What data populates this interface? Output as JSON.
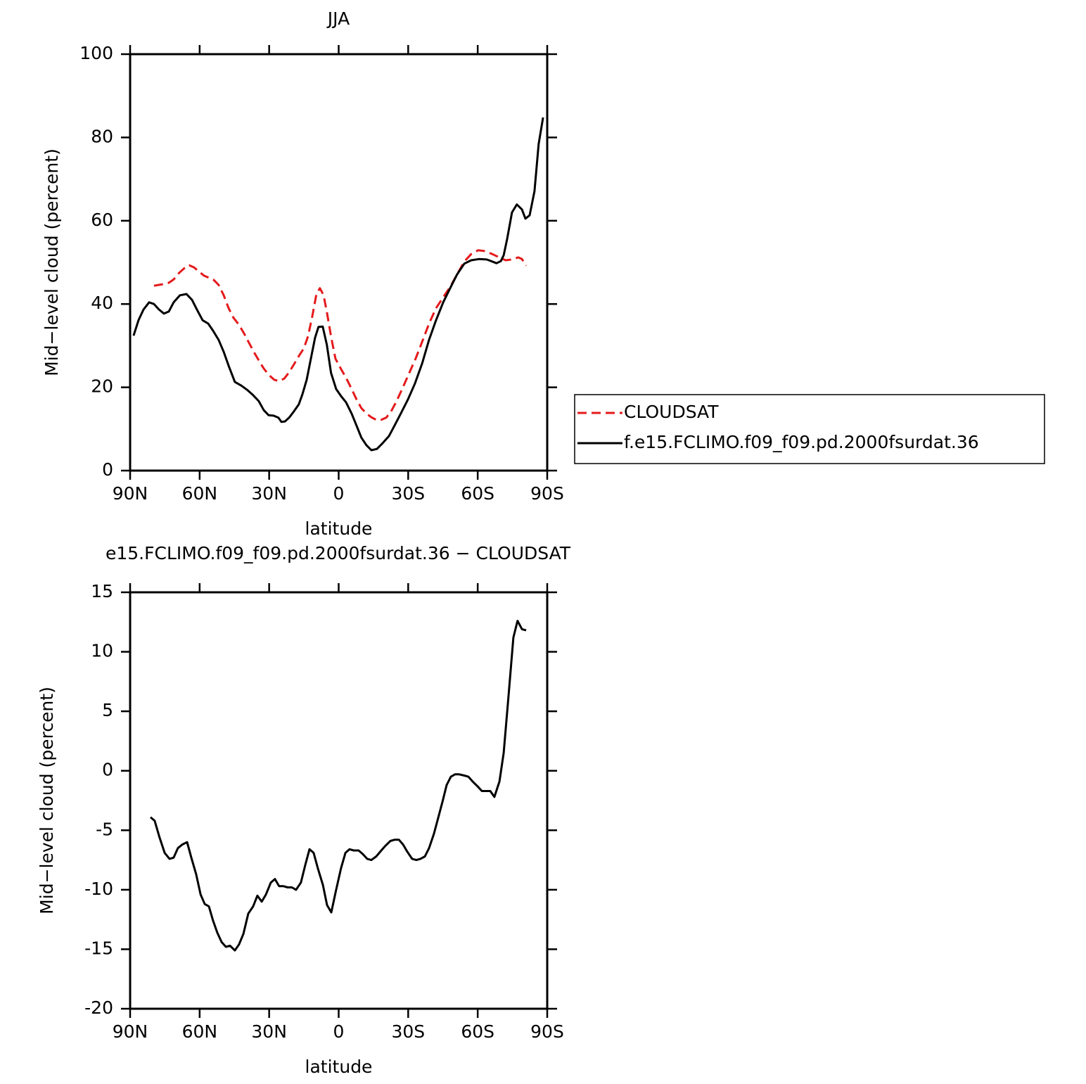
{
  "chart_data": [
    {
      "type": "line",
      "title": "JJA",
      "x_label": "latitude",
      "y_label": "Mid−level cloud (percent)",
      "xlim": [
        90,
        -90
      ],
      "xticks": [
        {
          "value": 90,
          "label": "90N"
        },
        {
          "value": 60,
          "label": "60N"
        },
        {
          "value": 30,
          "label": "30N"
        },
        0,
        {
          "value": -30,
          "label": "30S"
        },
        {
          "value": -60,
          "label": "60S"
        },
        {
          "value": -90,
          "label": "90S"
        }
      ],
      "ylim": [
        0,
        100
      ],
      "yticks": [
        0,
        20,
        40,
        60,
        80,
        100
      ],
      "legend": "outside-right",
      "series": [
        {
          "name": "CLOUDSAT",
          "color": "#e41a1c",
          "dashed": true,
          "x": [
            79.7,
            77.6,
            75.4,
            73.3,
            71.2,
            68.8,
            66.6,
            64.5,
            62.4,
            60.3,
            58.1,
            56.0,
            53.9,
            51.8,
            49.6,
            47.5,
            45.4,
            43.0,
            40.8,
            38.7,
            36.6,
            34.5,
            32.3,
            30.2,
            27.8,
            25.7,
            23.5,
            21.4,
            19.3,
            17.2,
            15.0,
            13.2,
            11.4,
            9.6,
            8.1,
            6.5,
            5.0,
            3.2,
            1.4,
            -1.1,
            -3.2,
            -5.6,
            -7.7,
            -9.8,
            -12.0,
            -14.1,
            -16.2,
            -18.4,
            -20.5,
            -22.6,
            -25.0,
            -27.8,
            -30.5,
            -33.2,
            -36.0,
            -39.0,
            -42.0,
            -45.1,
            -48.1,
            -51.1,
            -54.2,
            -57.2,
            -60.2,
            -63.3,
            -66.3,
            -69.3,
            -72.1,
            -74.8,
            -77.5,
            -79.1,
            -80.9
          ],
          "values": [
            44.4,
            44.6,
            44.8,
            45.1,
            45.9,
            47.5,
            48.6,
            49.3,
            48.8,
            47.8,
            46.8,
            46.3,
            45.8,
            44.6,
            42.1,
            39.0,
            36.7,
            35.0,
            32.9,
            30.7,
            28.5,
            26.5,
            24.5,
            23.0,
            21.8,
            21.5,
            22.1,
            23.6,
            25.5,
            27.5,
            29.4,
            32.3,
            37.0,
            42.4,
            43.8,
            42.1,
            37.8,
            31.9,
            26.9,
            24.3,
            22.3,
            19.6,
            17.1,
            15.0,
            13.7,
            12.8,
            12.2,
            12.2,
            12.7,
            14.2,
            16.7,
            20.1,
            23.5,
            26.9,
            30.9,
            35.3,
            39.0,
            41.6,
            44.1,
            47.1,
            50.2,
            52.0,
            52.9,
            52.7,
            52.0,
            51.2,
            50.5,
            50.7,
            51.2,
            50.8,
            49.2
          ]
        },
        {
          "name": "f.e15.FCLIMO.f09_f09.pd.2000fsurdat.36",
          "color": "#000000",
          "dashed": false,
          "x": [
            88.5,
            86.4,
            84.2,
            81.8,
            79.7,
            77.6,
            75.4,
            73.3,
            71.2,
            68.5,
            65.7,
            63.3,
            61.2,
            58.7,
            56.3,
            54.2,
            51.8,
            49.6,
            47.5,
            44.8,
            42.0,
            39.3,
            36.9,
            34.5,
            32.3,
            30.2,
            28.1,
            26.0,
            24.7,
            23.2,
            21.4,
            19.6,
            17.2,
            15.6,
            13.8,
            12.0,
            10.2,
            8.7,
            6.9,
            5.1,
            3.3,
            1.1,
            -1.0,
            -3.2,
            -5.6,
            -7.7,
            -9.8,
            -12.0,
            -14.1,
            -16.5,
            -19.0,
            -21.7,
            -24.1,
            -26.8,
            -29.9,
            -32.9,
            -36.0,
            -39.0,
            -42.0,
            -45.1,
            -48.1,
            -51.1,
            -54.2,
            -57.2,
            -60.5,
            -63.9,
            -66.3,
            -68.1,
            -70.0,
            -71.2,
            -72.7,
            -74.8,
            -76.9,
            -79.1,
            -80.6,
            -82.4,
            -84.5,
            -86.3,
            -88.2
          ],
          "values": [
            32.4,
            36.1,
            38.7,
            40.4,
            40.0,
            38.7,
            37.7,
            38.2,
            40.4,
            42.1,
            42.4,
            41.0,
            38.7,
            36.1,
            35.3,
            33.6,
            31.4,
            28.5,
            25.2,
            21.3,
            20.4,
            19.3,
            18.1,
            16.7,
            14.5,
            13.3,
            13.2,
            12.7,
            11.7,
            11.8,
            12.7,
            14.0,
            15.9,
            18.4,
            21.8,
            26.9,
            31.9,
            34.5,
            34.6,
            30.2,
            23.5,
            19.6,
            17.9,
            16.4,
            13.7,
            10.8,
            7.9,
            6.1,
            4.9,
            5.2,
            6.6,
            8.3,
            10.8,
            13.7,
            17.1,
            20.9,
            25.7,
            31.4,
            36.1,
            40.4,
            43.8,
            47.1,
            49.7,
            50.5,
            50.8,
            50.7,
            50.2,
            49.8,
            50.3,
            51.7,
            55.6,
            62.0,
            63.9,
            62.7,
            60.5,
            61.3,
            67.1,
            78.4,
            84.8
          ]
        }
      ]
    },
    {
      "type": "line",
      "title": "e15.FCLIMO.f09_f09.pd.2000fsurdat.36 − CLOUDSAT",
      "x_label": "latitude",
      "y_label": "Mid−level cloud (percent)",
      "xlim": [
        90,
        -90
      ],
      "xticks": [
        {
          "value": 90,
          "label": "90N"
        },
        {
          "value": 60,
          "label": "60N"
        },
        {
          "value": 30,
          "label": "30N"
        },
        0,
        {
          "value": -30,
          "label": "30S"
        },
        {
          "value": -60,
          "label": "60S"
        },
        {
          "value": -90,
          "label": "90S"
        }
      ],
      "ylim": [
        -20,
        15
      ],
      "yticks": [
        -20,
        -15,
        -10,
        -5,
        0,
        5,
        10,
        15
      ],
      "series": [
        {
          "color": "#000000",
          "dashed": false,
          "x": [
            81.2,
            79.4,
            77.3,
            75.1,
            73.0,
            71.2,
            69.4,
            67.5,
            65.4,
            63.6,
            61.5,
            59.6,
            57.8,
            56.0,
            54.2,
            52.4,
            50.5,
            48.7,
            46.9,
            44.8,
            43.0,
            41.1,
            39.0,
            36.9,
            35.1,
            33.2,
            31.4,
            29.3,
            27.5,
            25.7,
            23.8,
            22.0,
            20.2,
            18.4,
            16.3,
            14.4,
            12.6,
            10.8,
            9.0,
            6.8,
            5.0,
            3.2,
            1.1,
            -1.0,
            -2.9,
            -4.7,
            -6.5,
            -8.6,
            -10.4,
            -12.3,
            -14.1,
            -16.2,
            -18.4,
            -20.2,
            -22.3,
            -24.1,
            -26.0,
            -27.8,
            -29.6,
            -31.7,
            -33.5,
            -35.3,
            -37.2,
            -39.0,
            -41.1,
            -42.9,
            -44.8,
            -46.6,
            -48.4,
            -50.2,
            -52.0,
            -54.2,
            -56.0,
            -57.8,
            -59.9,
            -61.8,
            -63.6,
            -65.4,
            -67.2,
            -69.4,
            -71.2,
            -73.3,
            -75.4,
            -77.2,
            -79.1,
            -80.9
          ],
          "values": [
            -3.9,
            -4.2,
            -5.6,
            -6.9,
            -7.4,
            -7.3,
            -6.5,
            -6.2,
            -6.0,
            -7.3,
            -8.7,
            -10.4,
            -11.2,
            -11.4,
            -12.6,
            -13.6,
            -14.4,
            -14.8,
            -14.7,
            -15.1,
            -14.6,
            -13.7,
            -12.0,
            -11.4,
            -10.5,
            -11.0,
            -10.4,
            -9.4,
            -9.1,
            -9.7,
            -9.7,
            -9.8,
            -9.8,
            -10.0,
            -9.4,
            -7.9,
            -6.6,
            -6.9,
            -8.2,
            -9.6,
            -11.3,
            -11.9,
            -10.0,
            -8.2,
            -6.9,
            -6.6,
            -6.7,
            -6.7,
            -7.0,
            -7.4,
            -7.5,
            -7.2,
            -6.7,
            -6.3,
            -5.9,
            -5.8,
            -5.8,
            -6.2,
            -6.8,
            -7.4,
            -7.5,
            -7.4,
            -7.2,
            -6.5,
            -5.3,
            -4.0,
            -2.6,
            -1.2,
            -0.5,
            -0.3,
            -0.3,
            -0.4,
            -0.5,
            -0.9,
            -1.3,
            -1.7,
            -1.7,
            -1.7,
            -2.2,
            -0.9,
            1.5,
            6.3,
            11.2,
            12.6,
            11.9,
            11.8
          ]
        }
      ]
    }
  ]
}
